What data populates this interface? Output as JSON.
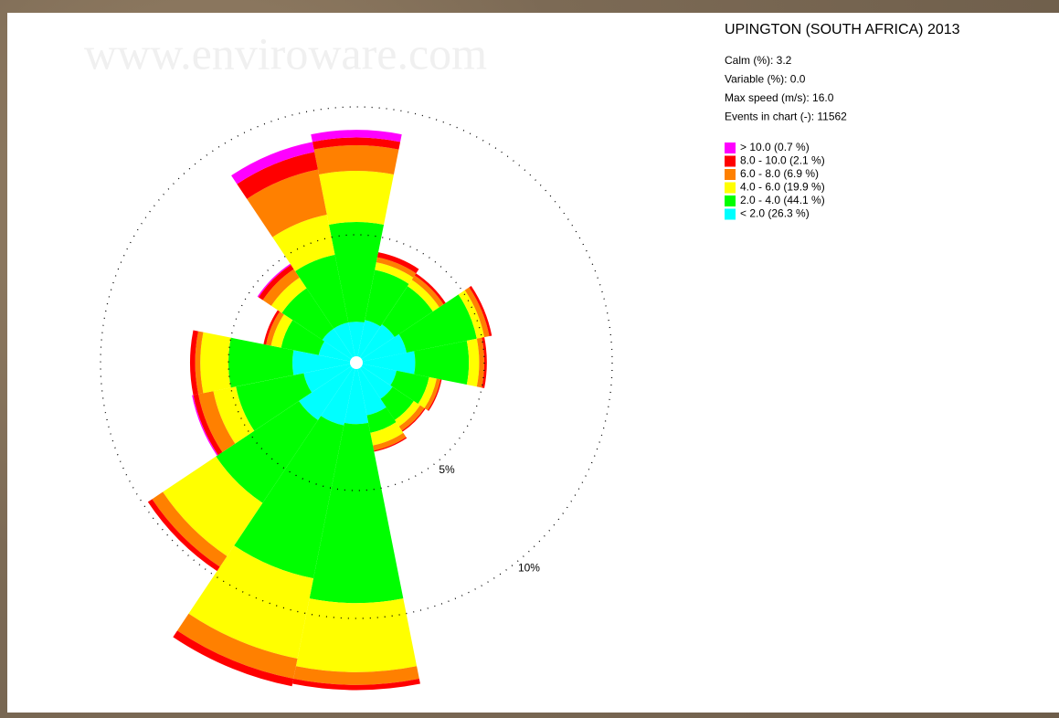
{
  "chart_data": {
    "type": "windrose",
    "title": "UPINGTON (SOUTH AFRICA) 2013",
    "watermark": "www.enviroware.com",
    "info": [
      "Calm (%): 3.2",
      "Variable (%): 0.0",
      "Max speed (m/s): 16.0",
      "Events in chart (-): 11562"
    ],
    "theta": [
      0,
      22.5,
      45,
      67.5,
      90,
      112.5,
      135,
      157.5,
      180,
      202.5,
      225,
      247.5,
      270,
      292.5,
      315,
      337.5
    ],
    "rlim": [
      0,
      10
    ],
    "rticks": [
      {
        "value": 5,
        "label": "5%"
      },
      {
        "value": 10,
        "label": "10%"
      }
    ],
    "series": [
      {
        "name": "< 2.0 (26.3 %)",
        "color": "#00ffff",
        "values": [
          1.6,
          1.7,
          1.8,
          2.0,
          2.3,
          1.6,
          1.7,
          2.1,
          2.4,
          2.5,
          2.7,
          2.1,
          2.5,
          1.5,
          1.6,
          1.6
        ]
      },
      {
        "name": "2.0 - 4.0 (44.1 %)",
        "color": "#00ff00",
        "values": [
          3.9,
          2.0,
          1.8,
          2.8,
          2.1,
          1.3,
          1.0,
          0.7,
          7.0,
          6.1,
          3.9,
          2.7,
          2.5,
          1.5,
          1.9,
          2.7
        ]
      },
      {
        "name": "4.0 - 6.0 (19.9 %)",
        "color": "#ffff00",
        "values": [
          2.0,
          0.3,
          0.3,
          0.3,
          0.4,
          0.3,
          0.3,
          0.5,
          2.7,
          3.2,
          2.5,
          0.9,
          1.1,
          0.4,
          0.5,
          1.6
        ]
      },
      {
        "name": "6.0 - 8.0 (6.9 %)",
        "color": "#ff8000",
        "values": [
          1.0,
          0.2,
          0.2,
          0.2,
          0.2,
          0.15,
          0.2,
          0.2,
          0.5,
          0.8,
          0.5,
          0.6,
          0.2,
          0.2,
          0.4,
          1.8
        ]
      },
      {
        "name": "8.0 - 10.0 (2.1 %)",
        "color": "#ff0000",
        "values": [
          0.3,
          0.2,
          0.1,
          0.1,
          0.1,
          0.05,
          0.05,
          0.05,
          0.2,
          0.3,
          0.2,
          0.2,
          0.2,
          0.1,
          0.2,
          0.7
        ]
      },
      {
        "name": "> 10.0 (0.7 %)",
        "color": "#ff00ff",
        "values": [
          0.3,
          0,
          0,
          0,
          0,
          0,
          0,
          0,
          0,
          0,
          0,
          0.05,
          0,
          0,
          0.05,
          0.4
        ]
      }
    ]
  }
}
